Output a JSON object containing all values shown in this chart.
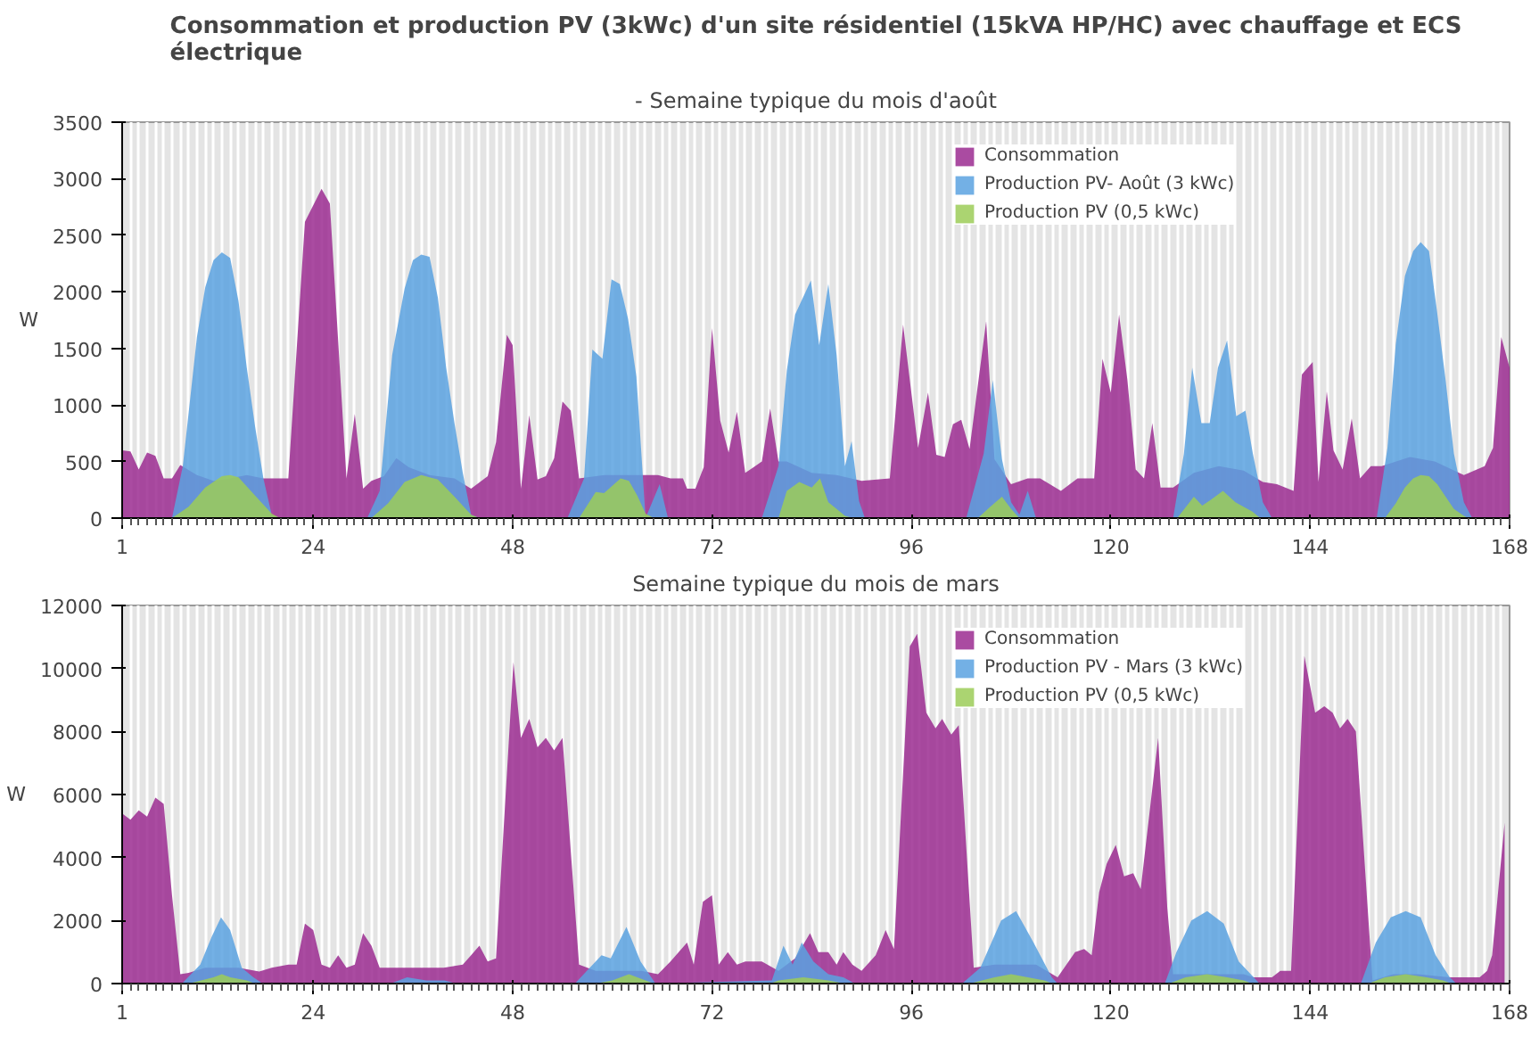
{
  "chart_data": [
    {
      "type": "area",
      "title": "Consommation et production PV (3kWc) d'un site résidentiel (15kVA HP/HC) avec chauffage et ECS électrique",
      "subtitle": "- Semaine typique du mois d'août",
      "ylabel": "W",
      "xlim": [
        1,
        168
      ],
      "xticks": [
        1,
        24,
        48,
        72,
        96,
        120,
        144,
        168
      ],
      "ylim": [
        0,
        3500
      ],
      "yticks": [
        0,
        500,
        1000,
        1500,
        2000,
        2500,
        3000,
        3500
      ],
      "grid": "x",
      "legend": "top right",
      "series": [
        {
          "name": "Consommation",
          "color": "#9b2c91",
          "x": [
            1,
            2,
            3,
            4,
            5,
            6,
            7,
            8,
            10,
            12,
            14,
            16,
            18,
            21,
            23,
            25,
            26,
            28,
            29,
            30,
            31,
            32.5,
            34,
            35.5,
            38,
            41,
            43,
            45,
            46,
            47.3,
            48,
            49,
            50,
            51,
            52,
            53,
            54,
            55,
            56,
            59,
            62,
            65.5,
            67,
            68.5,
            69,
            70,
            71,
            72,
            73,
            74,
            75,
            76,
            77,
            78,
            79,
            80,
            81,
            84,
            87,
            90,
            93.4,
            95,
            96.8,
            98,
            99,
            100,
            101,
            102,
            103,
            105,
            106,
            108,
            110,
            111.5,
            114,
            116,
            118,
            119,
            120,
            121,
            122,
            123,
            124,
            125,
            126,
            127.5,
            130,
            133,
            136,
            138.3,
            140,
            142,
            143,
            144.3,
            145,
            146,
            146.8,
            147.9,
            149,
            150,
            151.3,
            152.6,
            156,
            159,
            162.5,
            165,
            166,
            167,
            168
          ],
          "values": [
            600,
            590,
            430,
            580,
            550,
            350,
            350,
            470,
            380,
            330,
            350,
            380,
            350,
            350,
            2620,
            2910,
            2780,
            350,
            920,
            260,
            330,
            370,
            530,
            450,
            380,
            350,
            260,
            370,
            670,
            1620,
            1530,
            260,
            910,
            340,
            370,
            530,
            1030,
            950,
            350,
            380,
            380,
            380,
            350,
            350,
            260,
            260,
            450,
            1680,
            860,
            580,
            940,
            400,
            450,
            500,
            970,
            500,
            500,
            400,
            380,
            330,
            350,
            1710,
            620,
            1110,
            560,
            540,
            830,
            870,
            610,
            1740,
            520,
            300,
            350,
            350,
            240,
            350,
            350,
            1410,
            1110,
            1800,
            1220,
            430,
            350,
            840,
            270,
            270,
            400,
            460,
            420,
            320,
            300,
            240,
            1270,
            1380,
            320,
            1120,
            600,
            430,
            880,
            350,
            460,
            460,
            540,
            500,
            380,
            460,
            620,
            1600,
            1330
          ]
        },
        {
          "name": "Production PV- Août (3 kWc)",
          "color": "#5aa2e0",
          "x": [
            7,
            8.3,
            10,
            11,
            12,
            13,
            14,
            15,
            16,
            17,
            18,
            19,
            20,
            30.5,
            32,
            33.5,
            35,
            36,
            37,
            38,
            39,
            40,
            41,
            42,
            43,
            44,
            54.6,
            56.6,
            57.6,
            58.8,
            59.9,
            60.9,
            61.9,
            62.9,
            64,
            65.7,
            66.7,
            78,
            80,
            81,
            82,
            83.9,
            84.9,
            86,
            87,
            88,
            88.8,
            89.7,
            90.4,
            102.6,
            104.7,
            105.8,
            106.9,
            108,
            109,
            110,
            111,
            127.5,
            128.8,
            129.8,
            130.9,
            131.9,
            132.9,
            134,
            135.1,
            136.2,
            137.1,
            138.3,
            139.4,
            152,
            153.3,
            154.3,
            155.4,
            156.4,
            157.3,
            158.3,
            159.3,
            160.3,
            161.3,
            162.5,
            163.5
          ],
          "values": [
            0,
            460,
            1600,
            2040,
            2280,
            2350,
            2300,
            1920,
            1330,
            810,
            350,
            30,
            0,
            0,
            240,
            1440,
            2030,
            2280,
            2330,
            2310,
            1950,
            1330,
            840,
            400,
            30,
            0,
            0,
            350,
            1490,
            1410,
            2110,
            2070,
            1760,
            1250,
            0,
            300,
            0,
            0,
            460,
            1300,
            1800,
            2100,
            1530,
            2070,
            1440,
            460,
            680,
            150,
            0,
            0,
            570,
            1220,
            520,
            140,
            30,
            240,
            0,
            0,
            570,
            1330,
            840,
            840,
            1330,
            1570,
            900,
            950,
            570,
            140,
            0,
            0,
            620,
            1540,
            2140,
            2360,
            2440,
            2360,
            1810,
            1220,
            570,
            140,
            0
          ]
        },
        {
          "name": "Production PV (0,5 kWc)",
          "color": "#9ccc58",
          "x": [
            7,
            9,
            11,
            13,
            14,
            15,
            17,
            19,
            20,
            31,
            33,
            35,
            37,
            39,
            41,
            43,
            44,
            56,
            58,
            59,
            61,
            62,
            63,
            64,
            65,
            80,
            81,
            82.5,
            84,
            85,
            86,
            87,
            88,
            89,
            104,
            105.5,
            106.9,
            108,
            109,
            128,
            130,
            131,
            132,
            133.5,
            135,
            137,
            138,
            153,
            154.3,
            155.4,
            156.4,
            157.3,
            158.3,
            159.3,
            160.3,
            161.3,
            162.5,
            163
          ],
          "values": [
            0,
            100,
            270,
            370,
            380,
            360,
            200,
            40,
            0,
            0,
            130,
            320,
            380,
            340,
            190,
            30,
            0,
            0,
            230,
            220,
            350,
            330,
            200,
            40,
            0,
            0,
            240,
            320,
            270,
            350,
            140,
            80,
            20,
            0,
            0,
            100,
            190,
            80,
            0,
            0,
            190,
            110,
            160,
            240,
            140,
            60,
            0,
            0,
            130,
            270,
            350,
            380,
            370,
            300,
            190,
            80,
            20,
            0
          ]
        }
      ]
    },
    {
      "type": "area",
      "title": "Semaine typique du mois de mars",
      "ylabel": "W",
      "xlim": [
        1,
        168
      ],
      "xticks": [
        1,
        24,
        48,
        72,
        96,
        120,
        144,
        168
      ],
      "ylim": [
        0,
        12000
      ],
      "yticks": [
        0,
        2000,
        4000,
        6000,
        8000,
        10000,
        12000
      ],
      "grid": "x",
      "legend": "top right",
      "series": [
        {
          "name": "Consommation",
          "color": "#9b2c91",
          "x": [
            1,
            2,
            3,
            4,
            5,
            6,
            7,
            8,
            9,
            11,
            13,
            15,
            17.5,
            19,
            21,
            22,
            23,
            24,
            25,
            26,
            27,
            28,
            29,
            30,
            31,
            32,
            35,
            38,
            39.7,
            42,
            43,
            44,
            45,
            46,
            48.1,
            49,
            50,
            51,
            52,
            53,
            54,
            56,
            58,
            61,
            63.5,
            65.5,
            67,
            69,
            69.8,
            70.9,
            72,
            72.8,
            73.9,
            75,
            76,
            78,
            80,
            82,
            83.8,
            84.8,
            86,
            87,
            87.8,
            88.9,
            90,
            91.7,
            92.9,
            93.9,
            95.8,
            96.7,
            97.8,
            98.9,
            99.7,
            100.8,
            101.7,
            103.5,
            106,
            109,
            111,
            113.6,
            115.7,
            116.8,
            117.7,
            118.6,
            119.5,
            120.6,
            121.6,
            122.7,
            123.6,
            125.7,
            126.8,
            127.5,
            130,
            133,
            136,
            137.2,
            139.4,
            140.4,
            141.7,
            143.3,
            144.6,
            145.7,
            146.7,
            147.6,
            148.5,
            149.5,
            151.5,
            154,
            157,
            160.8,
            164.4,
            165.3,
            165.9,
            167.4
          ],
          "values": [
            5400,
            5200,
            5500,
            5300,
            5900,
            5700,
            2800,
            300,
            340,
            500,
            500,
            500,
            380,
            500,
            600,
            600,
            1900,
            1700,
            600,
            500,
            900,
            500,
            600,
            1600,
            1200,
            500,
            500,
            500,
            500,
            600,
            900,
            1200,
            700,
            800,
            10200,
            7800,
            8400,
            7500,
            7800,
            7400,
            7800,
            600,
            400,
            400,
            400,
            300,
            700,
            1300,
            600,
            2600,
            2800,
            600,
            1000,
            600,
            700,
            700,
            400,
            800,
            1600,
            1000,
            1000,
            600,
            1000,
            600,
            400,
            900,
            1700,
            1100,
            10700,
            11100,
            8600,
            8100,
            8400,
            7900,
            8200,
            500,
            600,
            600,
            600,
            200,
            1000,
            1100,
            900,
            2900,
            3800,
            4400,
            3400,
            3500,
            3000,
            7800,
            2400,
            300,
            300,
            300,
            300,
            200,
            200,
            400,
            400,
            10400,
            8600,
            8800,
            8600,
            8100,
            8400,
            8000,
            100,
            300,
            300,
            200,
            200,
            400,
            900,
            5100
          ]
        },
        {
          "name": "Production PV - Mars (3 kWc)",
          "color": "#5aa2e0",
          "x": [
            8.2,
            10.4,
            11.8,
            12.9,
            14,
            15.4,
            16.8,
            17.9,
            33.3,
            35.3,
            37.6,
            39.8,
            41.2,
            55.5,
            58.7,
            59.8,
            61.7,
            63.4,
            65.2,
            79.2,
            80.6,
            81.7,
            82.8,
            84.2,
            86,
            87.8,
            89.2,
            102.1,
            104.3,
            106.8,
            108.6,
            110.7,
            112.9,
            113.6,
            126.5,
            127.9,
            129.7,
            131.6,
            133.6,
            135.4,
            137.2,
            137.9,
            150.1,
            151.9,
            153.7,
            155.5,
            157.3,
            159.1,
            160.8,
            161.6
          ],
          "values": [
            0,
            600,
            1500,
            2100,
            1700,
            500,
            200,
            0,
            0,
            200,
            100,
            100,
            0,
            0,
            900,
            800,
            1800,
            700,
            0,
            100,
            1200,
            600,
            1300,
            700,
            300,
            200,
            0,
            0,
            500,
            2000,
            2300,
            1300,
            200,
            0,
            0,
            1000,
            2000,
            2300,
            1900,
            700,
            200,
            0,
            0,
            1300,
            2100,
            2300,
            2100,
            900,
            200,
            0
          ]
        },
        {
          "name": "Production PV (0,5 kWc)",
          "color": "#9ccc58",
          "x": [
            9,
            12,
            13,
            14,
            16,
            17,
            58,
            60,
            62,
            64,
            65,
            79,
            80,
            83,
            86,
            88,
            103,
            106,
            108,
            110,
            112,
            113,
            127,
            129,
            131.6,
            134,
            136,
            137,
            151,
            153,
            155.5,
            158,
            160,
            161
          ],
          "values": [
            0,
            200,
            300,
            200,
            100,
            0,
            0,
            100,
            300,
            100,
            0,
            0,
            100,
            200,
            100,
            0,
            0,
            200,
            300,
            200,
            100,
            0,
            0,
            200,
            300,
            200,
            100,
            0,
            0,
            200,
            300,
            200,
            100,
            0
          ]
        }
      ]
    }
  ]
}
